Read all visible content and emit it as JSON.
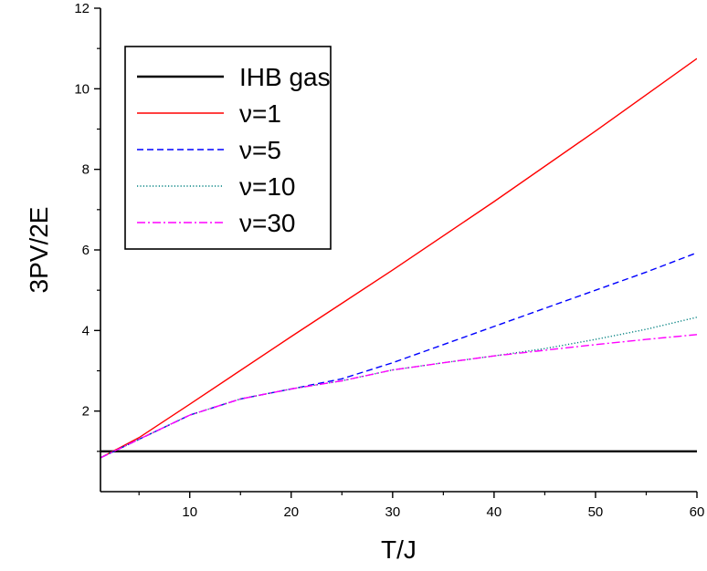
{
  "chart_data": {
    "type": "line",
    "title": "",
    "xlabel": "T/J",
    "ylabel": "3PV/2E",
    "xlim": [
      1.2,
      60
    ],
    "ylim": [
      0,
      12
    ],
    "x_ticks": [
      10,
      20,
      30,
      40,
      50,
      60
    ],
    "y_ticks": [
      2,
      4,
      6,
      8,
      10,
      12
    ],
    "legend_position": "top-left",
    "grid": false,
    "series": [
      {
        "name": "IHB gas",
        "color": "#000000",
        "style": "solid",
        "x": [
          1.2,
          60
        ],
        "y": [
          1.0,
          1.0
        ]
      },
      {
        "name": "ν=1",
        "color": "#ff0000",
        "style": "solid",
        "x": [
          1.2,
          5,
          10,
          20,
          30,
          40,
          50,
          60
        ],
        "y": [
          0.84,
          1.34,
          2.17,
          3.85,
          5.5,
          7.2,
          8.95,
          10.75
        ]
      },
      {
        "name": "ν=5",
        "color": "#0000ff",
        "style": "dashed",
        "x": [
          1.2,
          5,
          10,
          15,
          20,
          25,
          30,
          35,
          40,
          45,
          50,
          55,
          60
        ],
        "y": [
          0.84,
          1.3,
          1.9,
          2.3,
          2.55,
          2.8,
          3.2,
          3.65,
          4.1,
          4.55,
          5.0,
          5.45,
          5.93
        ]
      },
      {
        "name": "ν=10",
        "color": "#008080",
        "style": "dotted",
        "x": [
          1.2,
          5,
          10,
          15,
          20,
          25,
          30,
          35,
          40,
          45,
          50,
          55,
          60
        ],
        "y": [
          0.84,
          1.3,
          1.9,
          2.3,
          2.55,
          2.75,
          3.02,
          3.2,
          3.37,
          3.55,
          3.78,
          4.03,
          4.33
        ]
      },
      {
        "name": "ν=30",
        "color": "#ff00ff",
        "style": "dashdot",
        "x": [
          1.2,
          5,
          10,
          15,
          20,
          25,
          30,
          35,
          40,
          45,
          50,
          55,
          60
        ],
        "y": [
          0.84,
          1.3,
          1.9,
          2.3,
          2.55,
          2.75,
          3.02,
          3.2,
          3.37,
          3.51,
          3.65,
          3.78,
          3.9
        ]
      }
    ]
  }
}
